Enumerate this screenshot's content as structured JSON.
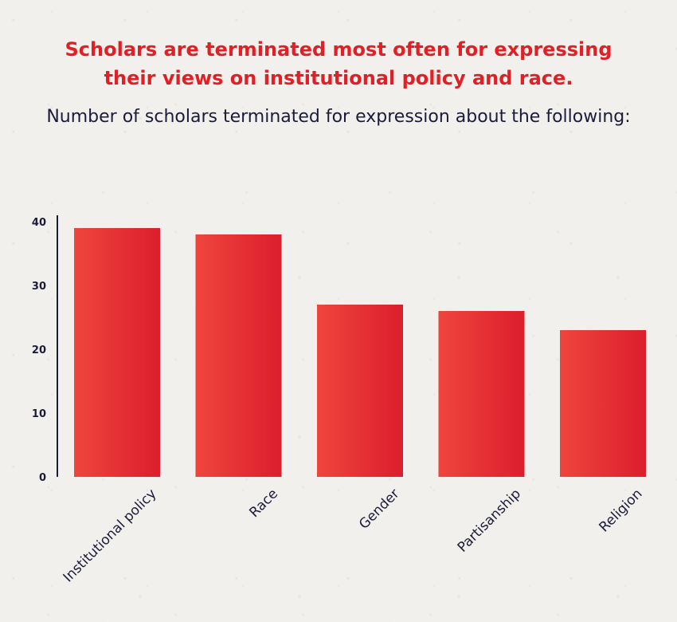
{
  "title_lines": [
    "Scholars are terminated most often for expressing",
    "their views on institutional policy and race."
  ],
  "subtitle": "Number of scholars terminated for expression about the following:",
  "colors": {
    "bar_start": "#ef453d",
    "bar_end": "#dc1e2d",
    "title": "#e31e24",
    "text": "#1b1c3a",
    "axis": "#1b1c3a",
    "background": "#f1f0ec"
  },
  "chart_data": {
    "type": "bar",
    "title": "Scholars are terminated most often for expressing their views on institutional policy and race.",
    "subtitle": "Number of scholars terminated for expression about the following:",
    "categories": [
      "Institutional policy",
      "Race",
      "Gender",
      "Partisanship",
      "Religion"
    ],
    "values": [
      39,
      38,
      27,
      26,
      23
    ],
    "ylim": [
      0,
      40
    ],
    "yticks": [
      0,
      10,
      20,
      30,
      40
    ],
    "grid": false,
    "legend": "none"
  }
}
